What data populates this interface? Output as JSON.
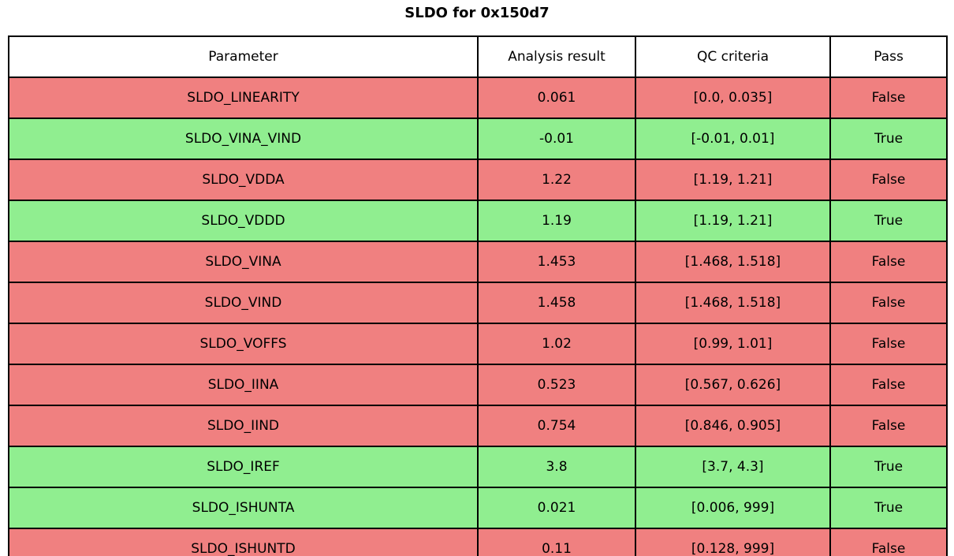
{
  "title": "SLDO for 0x150d7",
  "colors": {
    "pass_row": "#90ee90",
    "fail_row": "#f08080",
    "border": "#000000",
    "header_bg": "#ffffff",
    "text": "#000000"
  },
  "table": {
    "columns": [
      "Parameter",
      "Analysis result",
      "QC criteria",
      "Pass"
    ],
    "rows": [
      {
        "parameter": "SLDO_LINEARITY",
        "result": "0.061",
        "criteria": "[0.0, 0.035]",
        "pass": "False"
      },
      {
        "parameter": "SLDO_VINA_VIND",
        "result": "-0.01",
        "criteria": "[-0.01, 0.01]",
        "pass": "True"
      },
      {
        "parameter": "SLDO_VDDA",
        "result": "1.22",
        "criteria": "[1.19, 1.21]",
        "pass": "False"
      },
      {
        "parameter": "SLDO_VDDD",
        "result": "1.19",
        "criteria": "[1.19, 1.21]",
        "pass": "True"
      },
      {
        "parameter": "SLDO_VINA",
        "result": "1.453",
        "criteria": "[1.468, 1.518]",
        "pass": "False"
      },
      {
        "parameter": "SLDO_VIND",
        "result": "1.458",
        "criteria": "[1.468, 1.518]",
        "pass": "False"
      },
      {
        "parameter": "SLDO_VOFFS",
        "result": "1.02",
        "criteria": "[0.99, 1.01]",
        "pass": "False"
      },
      {
        "parameter": "SLDO_IINA",
        "result": "0.523",
        "criteria": "[0.567, 0.626]",
        "pass": "False"
      },
      {
        "parameter": "SLDO_IIND",
        "result": "0.754",
        "criteria": "[0.846, 0.905]",
        "pass": "False"
      },
      {
        "parameter": "SLDO_IREF",
        "result": "3.8",
        "criteria": "[3.7, 4.3]",
        "pass": "True"
      },
      {
        "parameter": "SLDO_ISHUNTA",
        "result": "0.021",
        "criteria": "[0.006, 999]",
        "pass": "True"
      },
      {
        "parameter": "SLDO_ISHUNTD",
        "result": "0.11",
        "criteria": "[0.128, 999]",
        "pass": "False"
      }
    ]
  },
  "chart_data": {
    "type": "table",
    "title": "SLDO for 0x150d7",
    "columns": [
      "Parameter",
      "Analysis result",
      "QC criteria",
      "Pass"
    ],
    "rows": [
      [
        "SLDO_LINEARITY",
        0.061,
        "[0.0, 0.035]",
        false
      ],
      [
        "SLDO_VINA_VIND",
        -0.01,
        "[-0.01, 0.01]",
        true
      ],
      [
        "SLDO_VDDA",
        1.22,
        "[1.19, 1.21]",
        false
      ],
      [
        "SLDO_VDDD",
        1.19,
        "[1.19, 1.21]",
        true
      ],
      [
        "SLDO_VINA",
        1.453,
        "[1.468, 1.518]",
        false
      ],
      [
        "SLDO_VIND",
        1.458,
        "[1.468, 1.518]",
        false
      ],
      [
        "SLDO_VOFFS",
        1.02,
        "[0.99, 1.01]",
        false
      ],
      [
        "SLDO_IINA",
        0.523,
        "[0.567, 0.626]",
        false
      ],
      [
        "SLDO_IIND",
        0.754,
        "[0.846, 0.905]",
        false
      ],
      [
        "SLDO_IREF",
        3.8,
        "[3.7, 4.3]",
        true
      ],
      [
        "SLDO_ISHUNTA",
        0.021,
        "[0.006, 999]",
        true
      ],
      [
        "SLDO_ISHUNTD",
        0.11,
        "[0.128, 999]",
        false
      ]
    ],
    "legend": "row background green = pass (True), red = fail (False)"
  }
}
